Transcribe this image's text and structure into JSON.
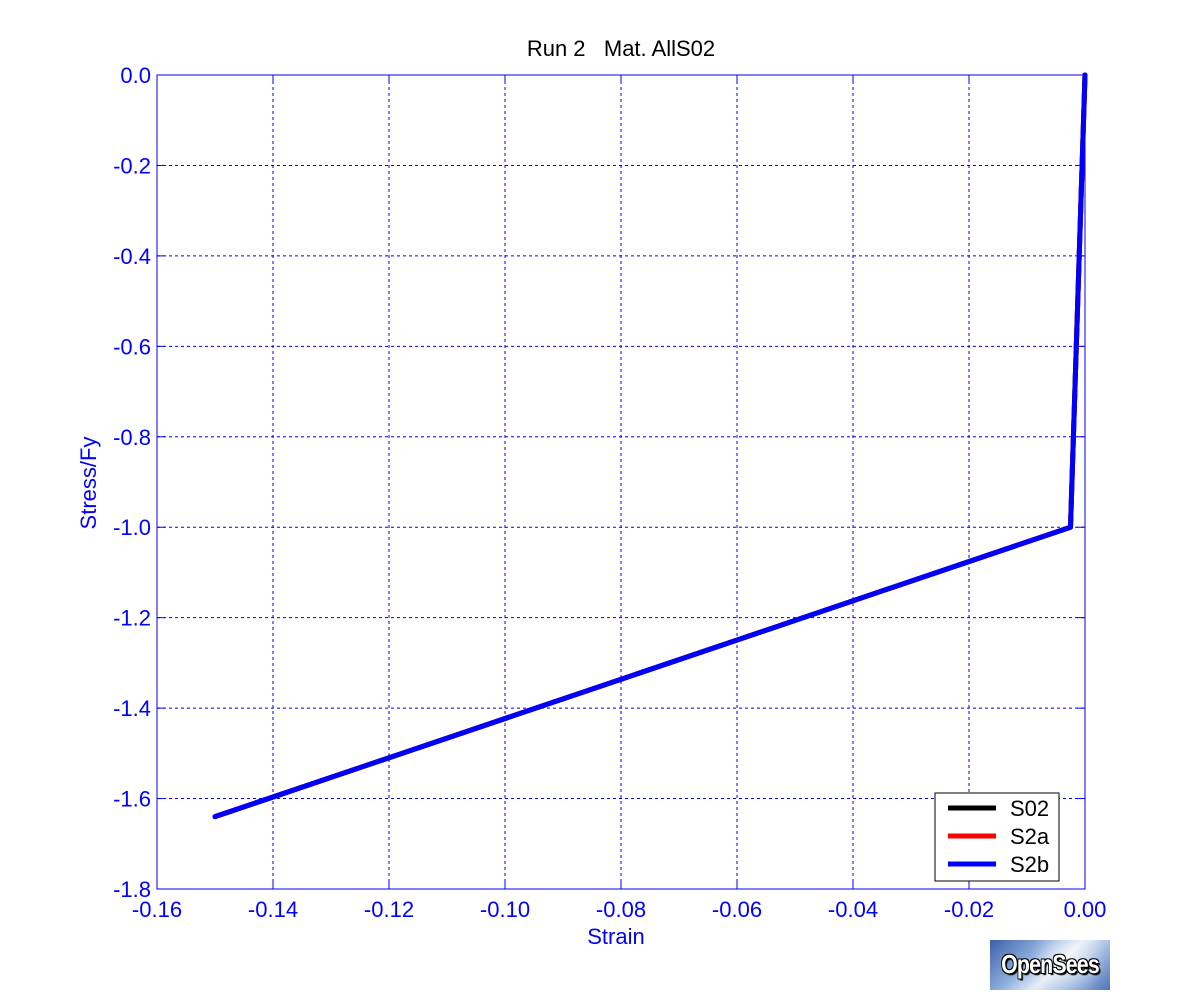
{
  "chart_data": {
    "type": "line",
    "title": "Run 2   Mat. AllS02",
    "xlabel": "Strain",
    "ylabel": "Stress/Fy",
    "xlim": [
      -0.16,
      0.0
    ],
    "ylim": [
      -1.8,
      0.0
    ],
    "xticks": [
      -0.16,
      -0.14,
      -0.12,
      -0.1,
      -0.08,
      -0.06,
      -0.04,
      -0.02,
      0.0
    ],
    "yticks": [
      0.0,
      -0.2,
      -0.4,
      -0.6,
      -0.8,
      -1.0,
      -1.2,
      -1.4,
      -1.6,
      -1.8
    ],
    "xtick_labels": [
      "-0.16",
      "-0.14",
      "-0.12",
      "-0.10",
      "-0.08",
      "-0.06",
      "-0.04",
      "-0.02",
      "0.00"
    ],
    "ytick_labels": [
      "0.0",
      "-0.2",
      "-0.4",
      "-0.6",
      "-0.8",
      "-1.0",
      "-1.2",
      "-1.4",
      "-1.6",
      "-1.8"
    ],
    "grid": true,
    "legend_position": "bottom-right",
    "series": [
      {
        "name": "S02",
        "color": "#000000",
        "x": [
          0.0,
          -0.0025,
          -0.15
        ],
        "y": [
          0.0,
          -1.0,
          -1.64
        ]
      },
      {
        "name": "S2a",
        "color": "#ff0000",
        "x": [
          0.0,
          -0.0025,
          -0.15
        ],
        "y": [
          0.0,
          -1.0,
          -1.64
        ]
      },
      {
        "name": "S2b",
        "color": "#0000ff",
        "x": [
          0.0,
          -0.0025,
          -0.15
        ],
        "y": [
          0.0,
          -1.0,
          -1.64
        ]
      }
    ]
  },
  "logo": {
    "text": "OpenSees"
  }
}
